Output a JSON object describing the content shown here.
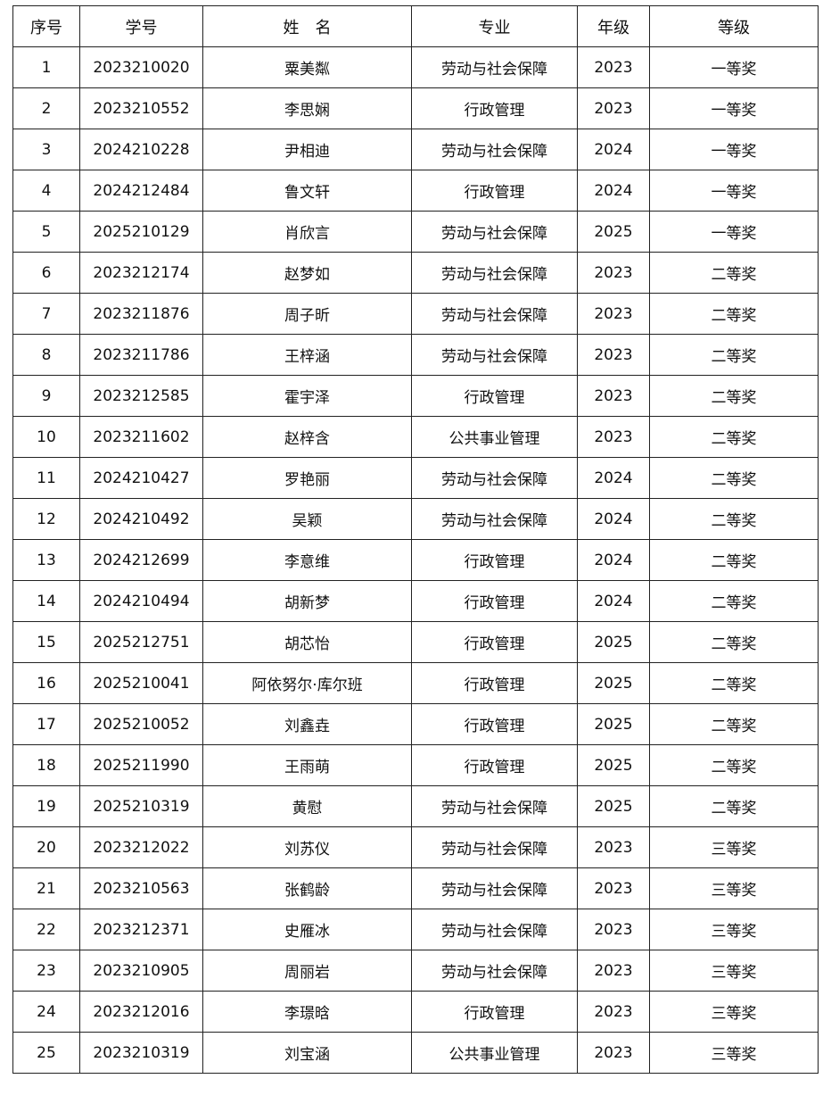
{
  "table": {
    "header": [
      "序号",
      "学号",
      "姓　名",
      "专业",
      "年级",
      "等级"
    ],
    "rows": [
      [
        "1",
        "2023210020",
        "粟美粼",
        "劳动与社会保障",
        "2023",
        "一等奖"
      ],
      [
        "2",
        "2023210552",
        "李思娴",
        "行政管理",
        "2023",
        "一等奖"
      ],
      [
        "3",
        "2024210228",
        "尹相迪",
        "劳动与社会保障",
        "2024",
        "一等奖"
      ],
      [
        "4",
        "2024212484",
        "鲁文轩",
        "行政管理",
        "2024",
        "一等奖"
      ],
      [
        "5",
        "2025210129",
        "肖欣言",
        "劳动与社会保障",
        "2025",
        "一等奖"
      ],
      [
        "6",
        "2023212174",
        "赵梦如",
        "劳动与社会保障",
        "2023",
        "二等奖"
      ],
      [
        "7",
        "2023211876",
        "周子昕",
        "劳动与社会保障",
        "2023",
        "二等奖"
      ],
      [
        "8",
        "2023211786",
        "王梓涵",
        "劳动与社会保障",
        "2023",
        "二等奖"
      ],
      [
        "9",
        "2023212585",
        "霍宇泽",
        "行政管理",
        "2023",
        "二等奖"
      ],
      [
        "10",
        "2023211602",
        "赵梓含",
        "公共事业管理",
        "2023",
        "二等奖"
      ],
      [
        "11",
        "2024210427",
        "罗艳丽",
        "劳动与社会保障",
        "2024",
        "二等奖"
      ],
      [
        "12",
        "2024210492",
        "吴颖",
        "劳动与社会保障",
        "2024",
        "二等奖"
      ],
      [
        "13",
        "2024212699",
        "李意维",
        "行政管理",
        "2024",
        "二等奖"
      ],
      [
        "14",
        "2024210494",
        "胡新梦",
        "行政管理",
        "2024",
        "二等奖"
      ],
      [
        "15",
        "2025212751",
        "胡芯怡",
        "行政管理",
        "2025",
        "二等奖"
      ],
      [
        "16",
        "2025210041",
        "阿依努尔·库尔班",
        "行政管理",
        "2025",
        "二等奖"
      ],
      [
        "17",
        "2025210052",
        "刘鑫垚",
        "行政管理",
        "2025",
        "二等奖"
      ],
      [
        "18",
        "2025211990",
        "王雨萌",
        "行政管理",
        "2025",
        "二等奖"
      ],
      [
        "19",
        "2025210319",
        "黄慰",
        "劳动与社会保障",
        "2025",
        "二等奖"
      ],
      [
        "20",
        "2023212022",
        "刘苏仪",
        "劳动与社会保障",
        "2023",
        "三等奖"
      ],
      [
        "21",
        "2023210563",
        "张鹤龄",
        "劳动与社会保障",
        "2023",
        "三等奖"
      ],
      [
        "22",
        "2023212371",
        "史雁冰",
        "劳动与社会保障",
        "2023",
        "三等奖"
      ],
      [
        "23",
        "2023210905",
        "周丽岩",
        "劳动与社会保障",
        "2023",
        "三等奖"
      ],
      [
        "24",
        "2023212016",
        "李璟晗",
        "行政管理",
        "2023",
        "三等奖"
      ],
      [
        "25",
        "2023210319",
        "刘宝涵",
        "公共事业管理",
        "2023",
        "三等奖"
      ]
    ]
  }
}
